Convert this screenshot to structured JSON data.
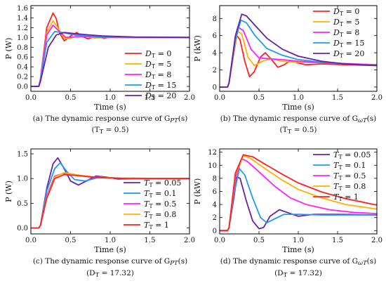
{
  "chart_data": [
    {
      "type": "line",
      "panel": "a",
      "caption": "(a) The dynamic response curve of G",
      "caption_sub": "PT",
      "caption_end": "(s)",
      "caption2": "(T",
      "caption2_sub": "T",
      "caption2_end": " = 0.5)",
      "xlabel": "Time (s)",
      "ylabel": "P (W)",
      "xlim": [
        0,
        2.0
      ],
      "ylim": [
        -0.1,
        1.65
      ],
      "xticks": [
        "0.0",
        "0.5",
        "1.0",
        "1.5",
        "2.0"
      ],
      "yticks": [
        "0.0",
        "0.2",
        "0.4",
        "0.6",
        "0.8",
        "1.0",
        "1.2",
        "1.4",
        "1.6"
      ],
      "legend_pos": "right-middle",
      "legend_param": "D",
      "legend_sub": "T",
      "step_time": 0.1,
      "series": [
        {
          "name": "= 0",
          "color": "#ff2020",
          "values": [
            [
              0.12,
              0.15
            ],
            [
              0.2,
              1.2
            ],
            [
              0.28,
              1.5
            ],
            [
              0.32,
              1.38
            ],
            [
              0.36,
              1.1
            ],
            [
              0.42,
              0.93
            ],
            [
              0.5,
              1.03
            ],
            [
              0.58,
              1.1
            ],
            [
              0.64,
              1.03
            ],
            [
              0.72,
              0.97
            ],
            [
              0.82,
              1.03
            ],
            [
              0.92,
              0.98
            ],
            [
              1.0,
              1.01
            ],
            [
              1.2,
              1.0
            ],
            [
              2.0,
              1.0
            ]
          ]
        },
        {
          "name": "= 5",
          "color": "#ffb000",
          "values": [
            [
              0.12,
              0.15
            ],
            [
              0.2,
              1.1
            ],
            [
              0.28,
              1.34
            ],
            [
              0.34,
              1.2
            ],
            [
              0.42,
              0.98
            ],
            [
              0.5,
              0.98
            ],
            [
              0.6,
              1.05
            ],
            [
              0.7,
              1.02
            ],
            [
              0.8,
              0.99
            ],
            [
              1.0,
              1.0
            ],
            [
              2.0,
              1.0
            ]
          ]
        },
        {
          "name": "= 8",
          "color": "#ff20ff",
          "values": [
            [
              0.12,
              0.15
            ],
            [
              0.2,
              1.05
            ],
            [
              0.28,
              1.25
            ],
            [
              0.36,
              1.12
            ],
            [
              0.44,
              1.0
            ],
            [
              0.55,
              1.01
            ],
            [
              0.7,
              1.02
            ],
            [
              0.9,
              1.0
            ],
            [
              2.0,
              1.0
            ]
          ]
        },
        {
          "name": "= 15",
          "color": "#1e9bf0",
          "values": [
            [
              0.12,
              0.12
            ],
            [
              0.2,
              0.9
            ],
            [
              0.3,
              1.12
            ],
            [
              0.4,
              1.1
            ],
            [
              0.55,
              1.05
            ],
            [
              0.8,
              1.02
            ],
            [
              1.2,
              1.0
            ],
            [
              2.0,
              1.0
            ]
          ]
        },
        {
          "name": "= 20",
          "color": "#6a1fa8",
          "values": [
            [
              0.12,
              0.1
            ],
            [
              0.22,
              0.8
            ],
            [
              0.32,
              1.05
            ],
            [
              0.42,
              1.1
            ],
            [
              0.6,
              1.07
            ],
            [
              0.9,
              1.03
            ],
            [
              1.3,
              1.01
            ],
            [
              2.0,
              1.0
            ]
          ]
        }
      ]
    },
    {
      "type": "line",
      "panel": "b",
      "caption": "(b) The dynamic response curve of G",
      "caption_sub": "ωT",
      "caption_end": "(s)",
      "caption2": "(T",
      "caption2_sub": "T",
      "caption2_end": " = 0.5)",
      "xlabel": "Time (s)",
      "ylabel": "P (kW)",
      "xlim": [
        0,
        2.0
      ],
      "ylim": [
        -0.5,
        9.5
      ],
      "xticks": [
        "0.0",
        "0.5",
        "1.0",
        "1.5",
        "2.0"
      ],
      "yticks": [
        "0",
        "2",
        "4",
        "6",
        "8"
      ],
      "legend_pos": "top-right",
      "legend_param": "D",
      "legend_sub": "T",
      "step_time": 0.1,
      "series": [
        {
          "name": "= 0",
          "color": "#ff2020",
          "values": [
            [
              0.12,
              0.5
            ],
            [
              0.18,
              4.0
            ],
            [
              0.22,
              6.0
            ],
            [
              0.26,
              5.5
            ],
            [
              0.32,
              3.0
            ],
            [
              0.38,
              1.2
            ],
            [
              0.44,
              1.8
            ],
            [
              0.52,
              3.5
            ],
            [
              0.58,
              4.0
            ],
            [
              0.66,
              3.2
            ],
            [
              0.74,
              2.3
            ],
            [
              0.82,
              2.6
            ],
            [
              0.9,
              3.1
            ],
            [
              1.0,
              2.8
            ],
            [
              1.1,
              2.6
            ],
            [
              1.3,
              2.7
            ],
            [
              1.6,
              2.6
            ],
            [
              2.0,
              2.5
            ]
          ]
        },
        {
          "name": "= 5",
          "color": "#ffb000",
          "values": [
            [
              0.12,
              0.5
            ],
            [
              0.18,
              4.2
            ],
            [
              0.23,
              6.5
            ],
            [
              0.28,
              6.2
            ],
            [
              0.36,
              3.5
            ],
            [
              0.44,
              2.5
            ],
            [
              0.54,
              3.0
            ],
            [
              0.64,
              3.3
            ],
            [
              0.8,
              3.0
            ],
            [
              1.0,
              2.9
            ],
            [
              1.4,
              2.8
            ],
            [
              2.0,
              2.6
            ]
          ]
        },
        {
          "name": "= 8",
          "color": "#ff20ff",
          "values": [
            [
              0.12,
              0.5
            ],
            [
              0.18,
              4.5
            ],
            [
              0.23,
              7.0
            ],
            [
              0.3,
              6.6
            ],
            [
              0.4,
              4.4
            ],
            [
              0.5,
              3.4
            ],
            [
              0.62,
              3.3
            ],
            [
              0.8,
              3.2
            ],
            [
              1.0,
              3.0
            ],
            [
              1.4,
              2.8
            ],
            [
              2.0,
              2.6
            ]
          ]
        },
        {
          "name": "= 15",
          "color": "#1e9bf0",
          "values": [
            [
              0.12,
              0.5
            ],
            [
              0.2,
              5.5
            ],
            [
              0.27,
              7.8
            ],
            [
              0.34,
              7.5
            ],
            [
              0.45,
              6.0
            ],
            [
              0.6,
              4.5
            ],
            [
              0.8,
              3.7
            ],
            [
              1.0,
              3.2
            ],
            [
              1.3,
              2.9
            ],
            [
              1.6,
              2.7
            ],
            [
              2.0,
              2.55
            ]
          ]
        },
        {
          "name": "= 20",
          "color": "#6a1fa8",
          "values": [
            [
              0.12,
              0.5
            ],
            [
              0.2,
              6.0
            ],
            [
              0.28,
              8.5
            ],
            [
              0.34,
              8.3
            ],
            [
              0.45,
              7.2
            ],
            [
              0.6,
              5.7
            ],
            [
              0.8,
              4.4
            ],
            [
              1.0,
              3.6
            ],
            [
              1.3,
              3.0
            ],
            [
              1.6,
              2.7
            ],
            [
              2.0,
              2.5
            ]
          ]
        }
      ]
    },
    {
      "type": "line",
      "panel": "c",
      "caption": "(c) The dynamic response curve of G",
      "caption_sub": "PT",
      "caption_end": "(s)",
      "caption2": "(D",
      "caption2_sub": "T",
      "caption2_end": " = 17.32)",
      "xlabel": "Time (s)",
      "ylabel": "P (W)",
      "xlim": [
        0,
        2.0
      ],
      "ylim": [
        -0.12,
        1.6
      ],
      "xticks": [
        "0.0",
        "0.5",
        "1.0",
        "1.5",
        "2.0"
      ],
      "yticks": [
        "0.0",
        "0.5",
        "1.0",
        "1.5"
      ],
      "legend_pos": "bottom-right",
      "legend_param": "T",
      "legend_sub": "T",
      "step_time": 0.1,
      "series": [
        {
          "name": "= 0.05",
          "color": "#6a1fa8",
          "values": [
            [
              0.12,
              0.05
            ],
            [
              0.2,
              0.8
            ],
            [
              0.28,
              1.3
            ],
            [
              0.34,
              1.42
            ],
            [
              0.42,
              1.2
            ],
            [
              0.5,
              0.95
            ],
            [
              0.6,
              0.87
            ],
            [
              0.7,
              0.95
            ],
            [
              0.82,
              1.05
            ],
            [
              0.95,
              1.03
            ],
            [
              1.1,
              0.99
            ],
            [
              1.3,
              1.0
            ],
            [
              2.0,
              1.0
            ]
          ]
        },
        {
          "name": "= 0.1",
          "color": "#1e9bf0",
          "values": [
            [
              0.12,
              0.05
            ],
            [
              0.2,
              0.75
            ],
            [
              0.3,
              1.2
            ],
            [
              0.37,
              1.32
            ],
            [
              0.45,
              1.15
            ],
            [
              0.55,
              0.98
            ],
            [
              0.68,
              0.95
            ],
            [
              0.85,
              1.02
            ],
            [
              1.0,
              1.02
            ],
            [
              1.2,
              1.0
            ],
            [
              2.0,
              1.0
            ]
          ]
        },
        {
          "name": "= 0.5",
          "color": "#ff20ff",
          "values": [
            [
              0.12,
              0.05
            ],
            [
              0.2,
              0.65
            ],
            [
              0.3,
              1.05
            ],
            [
              0.4,
              1.1
            ],
            [
              0.55,
              1.07
            ],
            [
              0.75,
              1.03
            ],
            [
              1.0,
              1.01
            ],
            [
              2.0,
              1.0
            ]
          ]
        },
        {
          "name": "= 0.8",
          "color": "#ffb000",
          "values": [
            [
              0.12,
              0.05
            ],
            [
              0.2,
              0.62
            ],
            [
              0.3,
              1.03
            ],
            [
              0.42,
              1.12
            ],
            [
              0.6,
              1.07
            ],
            [
              0.8,
              1.03
            ],
            [
              1.1,
              1.01
            ],
            [
              2.0,
              1.0
            ]
          ]
        },
        {
          "name": "= 1",
          "color": "#ff2020",
          "values": [
            [
              0.12,
              0.05
            ],
            [
              0.2,
              0.6
            ],
            [
              0.3,
              1.0
            ],
            [
              0.42,
              1.08
            ],
            [
              0.6,
              1.06
            ],
            [
              0.85,
              1.02
            ],
            [
              1.2,
              1.0
            ],
            [
              2.0,
              1.0
            ]
          ]
        }
      ]
    },
    {
      "type": "line",
      "panel": "d",
      "caption": "(d) The dynamic response curve of G",
      "caption_sub": "ωT",
      "caption_end": "(s)",
      "caption2": "(D",
      "caption2_sub": "T",
      "caption2_end": " = 17.32)",
      "xlabel": "Time (s)",
      "ylabel": "P (kW)",
      "xlim": [
        0,
        2.0
      ],
      "ylim": [
        -0.5,
        12.5
      ],
      "xticks": [
        "0.0",
        "0.5",
        "1.0",
        "1.5",
        "2.0"
      ],
      "yticks": [
        "0",
        "2",
        "4",
        "6",
        "8",
        "10",
        "12"
      ],
      "legend_pos": "top-right",
      "legend_param": "T",
      "legend_sub": "T",
      "step_time": 0.1,
      "series": [
        {
          "name": "= 0.05",
          "color": "#6a1fa8",
          "values": [
            [
              0.12,
              0.5
            ],
            [
              0.18,
              5.0
            ],
            [
              0.22,
              8.2
            ],
            [
              0.26,
              8.0
            ],
            [
              0.34,
              4.5
            ],
            [
              0.42,
              1.5
            ],
            [
              0.5,
              0.3
            ],
            [
              0.56,
              0.5
            ],
            [
              0.64,
              2.2
            ],
            [
              0.76,
              3.2
            ],
            [
              0.88,
              2.7
            ],
            [
              1.0,
              2.2
            ],
            [
              1.2,
              2.5
            ],
            [
              1.5,
              2.5
            ],
            [
              2.0,
              2.4
            ]
          ]
        },
        {
          "name": "= 0.1",
          "color": "#1e9bf0",
          "values": [
            [
              0.12,
              0.5
            ],
            [
              0.18,
              5.5
            ],
            [
              0.25,
              9.5
            ],
            [
              0.32,
              8.5
            ],
            [
              0.42,
              5.0
            ],
            [
              0.52,
              2.0
            ],
            [
              0.6,
              1.2
            ],
            [
              0.7,
              1.8
            ],
            [
              0.82,
              2.5
            ],
            [
              1.0,
              2.5
            ],
            [
              1.3,
              2.4
            ],
            [
              2.0,
              2.4
            ]
          ]
        },
        {
          "name": "= 0.5",
          "color": "#ff20ff",
          "values": [
            [
              0.12,
              0.5
            ],
            [
              0.2,
              8.0
            ],
            [
              0.28,
              11.0
            ],
            [
              0.35,
              10.6
            ],
            [
              0.5,
              9.0
            ],
            [
              0.7,
              6.8
            ],
            [
              0.9,
              5.0
            ],
            [
              1.1,
              4.0
            ],
            [
              1.4,
              3.2
            ],
            [
              1.7,
              2.8
            ],
            [
              2.0,
              2.6
            ]
          ]
        },
        {
          "name": "= 0.8",
          "color": "#ffb000",
          "values": [
            [
              0.12,
              0.5
            ],
            [
              0.2,
              8.5
            ],
            [
              0.3,
              11.5
            ],
            [
              0.4,
              11.0
            ],
            [
              0.6,
              9.3
            ],
            [
              0.8,
              7.7
            ],
            [
              1.0,
              6.3
            ],
            [
              1.3,
              5.0
            ],
            [
              1.6,
              4.0
            ],
            [
              2.0,
              3.3
            ]
          ]
        },
        {
          "name": "= 1",
          "color": "#ff2020",
          "values": [
            [
              0.12,
              0.5
            ],
            [
              0.2,
              8.8
            ],
            [
              0.3,
              11.6
            ],
            [
              0.42,
              11.3
            ],
            [
              0.6,
              10.0
            ],
            [
              0.8,
              8.6
            ],
            [
              1.0,
              7.3
            ],
            [
              1.3,
              5.9
            ],
            [
              1.6,
              4.9
            ],
            [
              2.0,
              3.9
            ]
          ]
        }
      ]
    }
  ]
}
